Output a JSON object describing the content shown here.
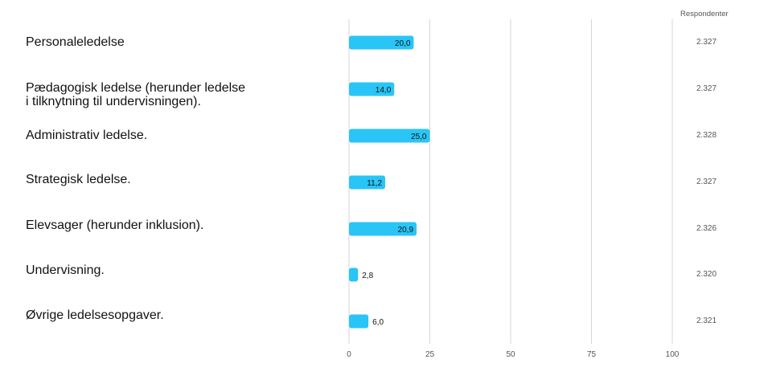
{
  "chart_data": {
    "type": "bar",
    "orientation": "horizontal",
    "categories": [
      "Personaleledelse",
      "Pædagogisk ledelse (herunder ledelse\ni tilknytning til undervisningen).",
      "Administrativ ledelse.",
      "Strategisk ledelse.",
      "Elevsager (herunder inklusion).",
      "Undervisning.",
      "Øvrige ledelsesopgaver."
    ],
    "values": [
      20.0,
      14.0,
      25.0,
      11.2,
      20.9,
      2.8,
      6.0
    ],
    "value_labels": [
      "20,0",
      "14,0",
      "25,0",
      "11,2",
      "20,9",
      "2,8",
      "6,0"
    ],
    "respondents_header": "Respondenter",
    "respondents": [
      "2.327",
      "2.327",
      "2.328",
      "2.327",
      "2.326",
      "2.320",
      "2.321"
    ],
    "xlim": [
      0,
      100
    ],
    "xticks": [
      0,
      25,
      50,
      75,
      100
    ],
    "xtick_labels": [
      "0",
      "25",
      "50",
      "75",
      "100"
    ],
    "grid": true,
    "bar_color": "#29c5f6",
    "grid_color": "#d6d6d6"
  }
}
